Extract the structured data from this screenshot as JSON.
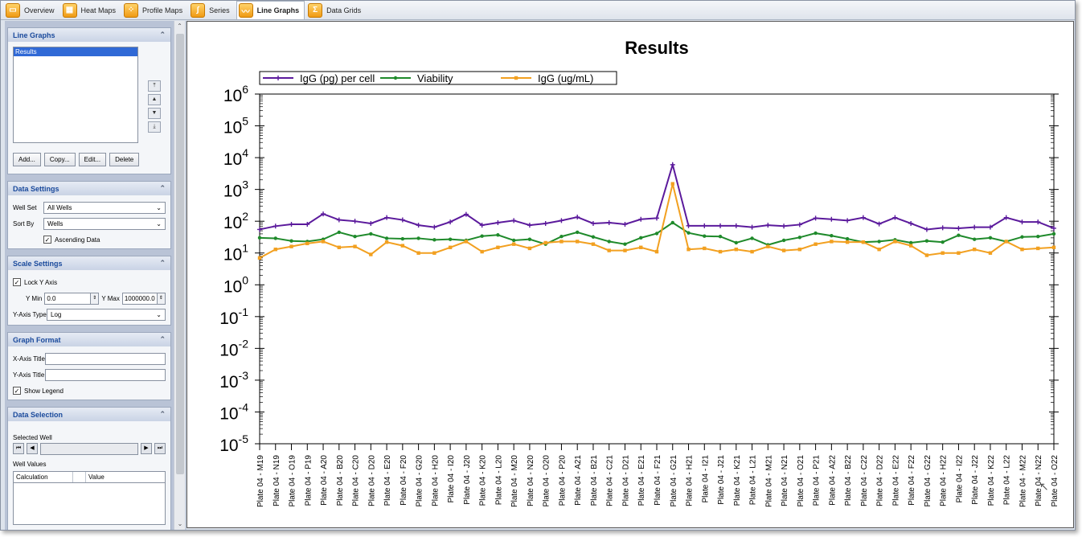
{
  "tabs": [
    {
      "label": "Overview",
      "icon": "overview-icon",
      "glyph": "▭"
    },
    {
      "label": "Heat Maps",
      "icon": "heatmap-icon",
      "glyph": "▦"
    },
    {
      "label": "Profile Maps",
      "icon": "profilemap-icon",
      "glyph": "⁘"
    },
    {
      "label": "Series",
      "icon": "series-icon",
      "glyph": "∫"
    },
    {
      "label": "Line Graphs",
      "icon": "linegraph-icon",
      "glyph": "〰",
      "active": true
    },
    {
      "label": "Data Grids",
      "icon": "datagrid-icon",
      "glyph": "Σ"
    }
  ],
  "sidebar": {
    "line_graphs": {
      "title": "Line Graphs",
      "items": [
        "Results"
      ],
      "buttons": {
        "add": "Add...",
        "copy": "Copy...",
        "edit": "Edit...",
        "delete": "Delete"
      }
    },
    "data_settings": {
      "title": "Data Settings",
      "well_set_label": "Well Set",
      "well_set_value": "All Wells",
      "sort_by_label": "Sort By",
      "sort_by_value": "Wells",
      "ascending_label": "Ascending Data",
      "ascending_checked": true
    },
    "scale_settings": {
      "title": "Scale Settings",
      "lock_y_label": "Lock Y Axis",
      "lock_y_checked": true,
      "ymin_label": "Y Min",
      "ymin_value": "0.0",
      "ymax_label": "Y Max",
      "ymax_value": "1000000.0",
      "yaxis_type_label": "Y-Axis Type",
      "yaxis_type_value": "Log"
    },
    "graph_format": {
      "title": "Graph Format",
      "xaxis_title_label": "X-Axis Title",
      "xaxis_title_value": "",
      "yaxis_title_label": "Y-Axis Title",
      "yaxis_title_value": "",
      "show_legend_label": "Show Legend",
      "show_legend_checked": true
    },
    "data_selection": {
      "title": "Data Selection",
      "selected_well_label": "Selected Well",
      "well_values_label": "Well Values",
      "col_calculation": "Calculation",
      "col_value": "Value"
    }
  },
  "chart_data": {
    "type": "line",
    "title": "Results",
    "xlabel": "",
    "ylabel": "",
    "yscale": "log",
    "ylim": [
      1e-05,
      1000000
    ],
    "ytick_exponents": [
      6,
      5,
      4,
      3,
      2,
      1,
      0,
      -1,
      -2,
      -3,
      -4,
      -5
    ],
    "legend": "top-left",
    "categories": [
      "Plate 04 - M19",
      "Plate 04 - N19",
      "Plate 04 - O19",
      "Plate 04 - P19",
      "Plate 04 - A20",
      "Plate 04 - B20",
      "Plate 04 - C20",
      "Plate 04 - D20",
      "Plate 04 - E20",
      "Plate 04 - F20",
      "Plate 04 - G20",
      "Plate 04 - H20",
      "Plate 04 - I20",
      "Plate 04 - J20",
      "Plate 04 - K20",
      "Plate 04 - L20",
      "Plate 04 - M20",
      "Plate 04 - N20",
      "Plate 04 - O20",
      "Plate 04 - P20",
      "Plate 04 - A21",
      "Plate 04 - B21",
      "Plate 04 - C21",
      "Plate 04 - D21",
      "Plate 04 - E21",
      "Plate 04 - F21",
      "Plate 04 - G21",
      "Plate 04 - H21",
      "Plate 04 - I21",
      "Plate 04 - J21",
      "Plate 04 - K21",
      "Plate 04 - L21",
      "Plate 04 - M21",
      "Plate 04 - N21",
      "Plate 04 - O21",
      "Plate 04 - P21",
      "Plate 04 - A22",
      "Plate 04 - B22",
      "Plate 04 - C22",
      "Plate 04 - D22",
      "Plate 04 - E22",
      "Plate 04 - F22",
      "Plate 04 - G22",
      "Plate 04 - H22",
      "Plate 04 - I22",
      "Plate 04 - J22",
      "Plate 04 - K22",
      "Plate 04 - L22",
      "Plate 04 - M22",
      "Plate 04 - N22",
      "Plate 04 - O22"
    ],
    "series": [
      {
        "name": "IgG (pg) per cell",
        "color": "#5b1a9c",
        "marker": "plus",
        "values": [
          55,
          70,
          80,
          80,
          170,
          110,
          100,
          85,
          130,
          110,
          75,
          65,
          95,
          165,
          75,
          90,
          105,
          75,
          85,
          105,
          135,
          85,
          90,
          80,
          115,
          125,
          6000,
          72,
          72,
          72,
          72,
          65,
          75,
          70,
          78,
          125,
          115,
          105,
          130,
          82,
          130,
          85,
          55,
          62,
          60,
          65,
          65,
          130,
          95,
          95,
          60
        ]
      },
      {
        "name": "Viability",
        "color": "#1f8a2b",
        "marker": "circle",
        "values": [
          30,
          29,
          24,
          23,
          27,
          45,
          33,
          40,
          29,
          28,
          29,
          26,
          27,
          25,
          34,
          37,
          25,
          27,
          19,
          33,
          45,
          32,
          23,
          19,
          30,
          41,
          90,
          43,
          34,
          33,
          21,
          29,
          18,
          25,
          31,
          42,
          35,
          28,
          22,
          23,
          26,
          21,
          24,
          22,
          36,
          27,
          30,
          23,
          32,
          33,
          40
        ]
      },
      {
        "name": "IgG (ug/mL)",
        "color": "#f2a020",
        "marker": "square",
        "values": [
          7,
          13,
          16,
          20,
          23,
          15,
          16,
          9,
          22,
          17,
          10,
          10,
          15,
          23,
          11,
          15,
          19,
          14,
          21,
          23,
          23,
          19,
          12,
          12,
          15,
          11,
          1500,
          13,
          14,
          11,
          13,
          11,
          16,
          12,
          13,
          19,
          23,
          22,
          22,
          13,
          23,
          17,
          8.5,
          10,
          10,
          13,
          10,
          23,
          13,
          14,
          15
        ]
      }
    ]
  }
}
